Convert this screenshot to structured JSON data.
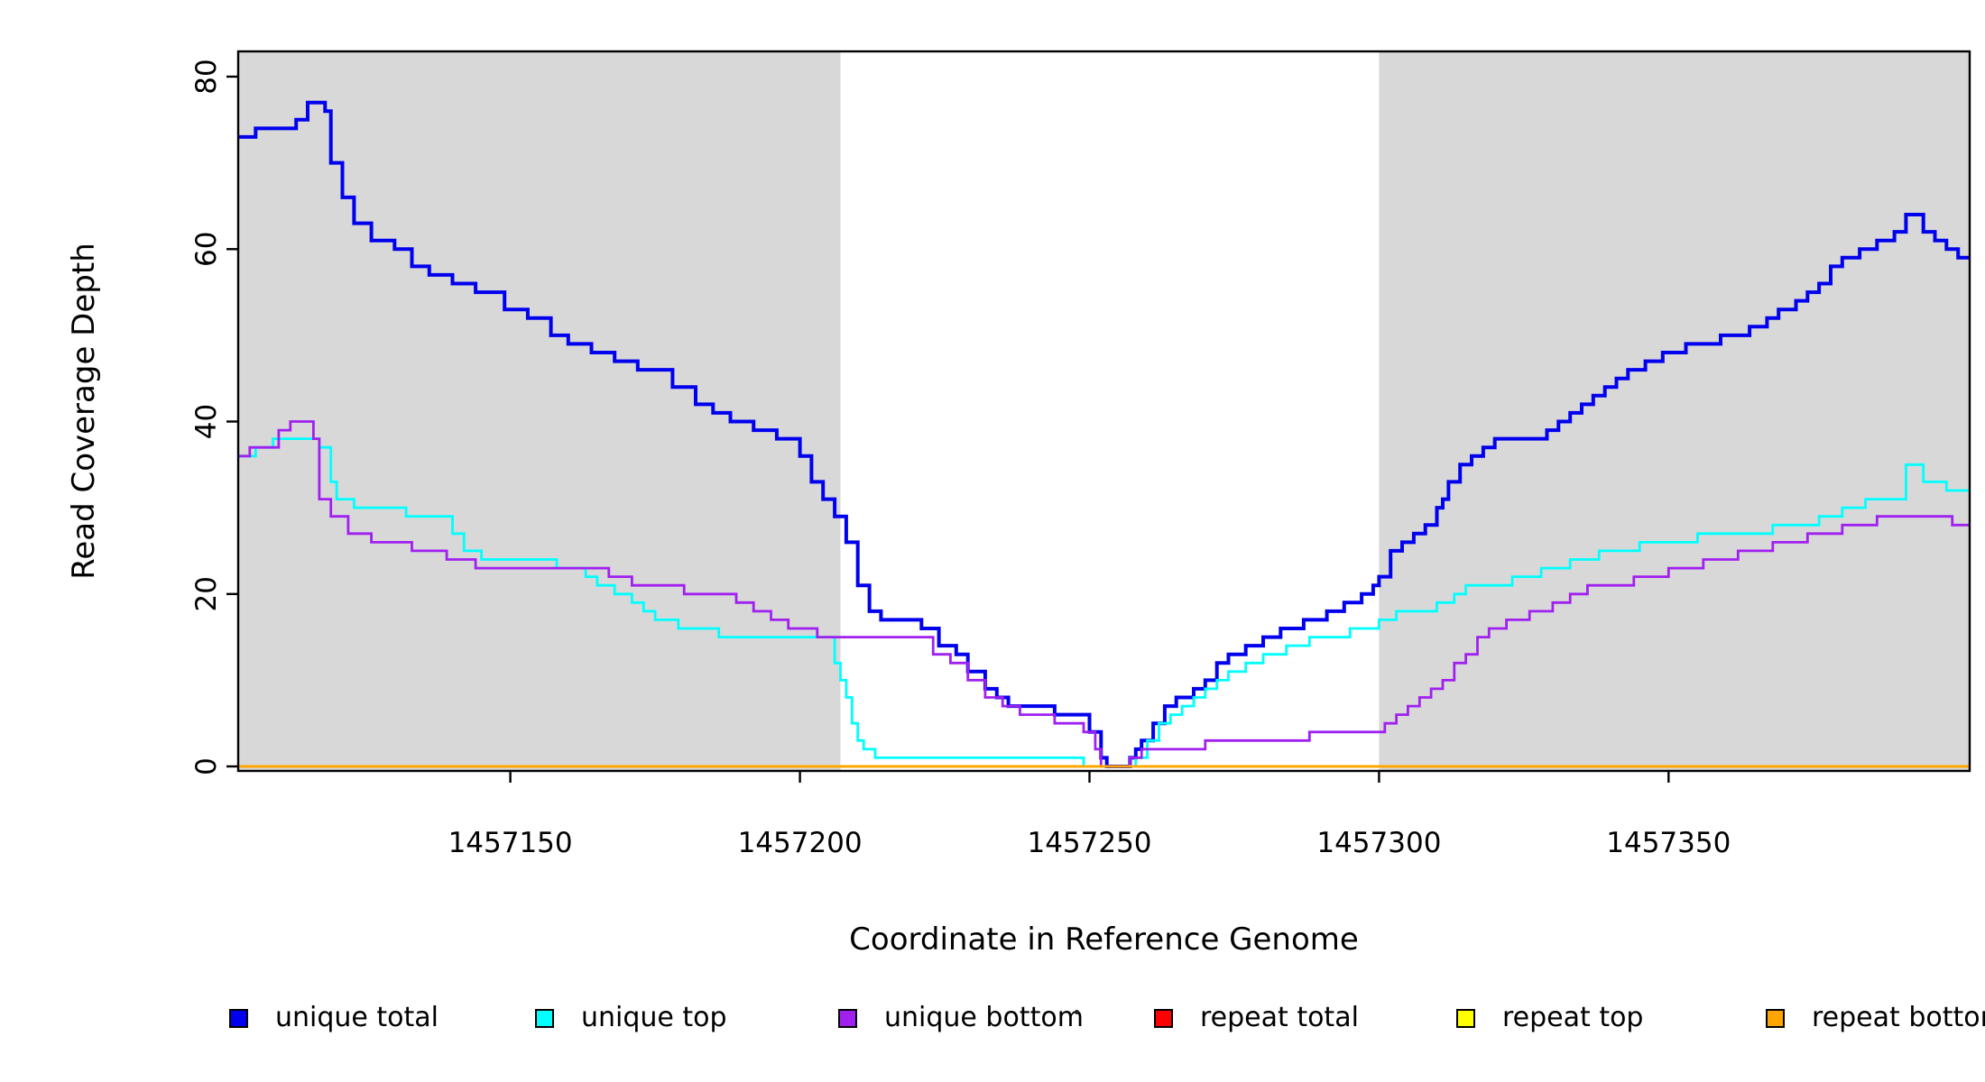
{
  "figure": {
    "background": "#FFFFFF",
    "axis_color": "#000000"
  },
  "chart_data": {
    "type": "line",
    "line_style": "step",
    "title": "",
    "xlabel": "Coordinate in Reference Genome",
    "ylabel": "Read Coverage Depth",
    "xlim": [
      1457103,
      1457402
    ],
    "ylim": [
      0,
      80
    ],
    "x_ticks": [
      1457150,
      1457200,
      1457250,
      1457300,
      1457350
    ],
    "y_ticks": [
      0,
      20,
      40,
      60,
      80
    ],
    "grid": false,
    "legend_position": "bottom-horizontal",
    "shaded_regions": [
      {
        "x0": 1457103,
        "x1": 1457207,
        "color": "#D8D8D8"
      },
      {
        "x0": 1457300,
        "x1": 1457402,
        "color": "#D8D8D8"
      }
    ],
    "series": [
      {
        "id": "unique-total",
        "name": "unique total",
        "color": "#0000EE",
        "points": [
          [
            1457103,
            73
          ],
          [
            1457106,
            74
          ],
          [
            1457113,
            75
          ],
          [
            1457115,
            77
          ],
          [
            1457118,
            76
          ],
          [
            1457119,
            70
          ],
          [
            1457121,
            66
          ],
          [
            1457123,
            63
          ],
          [
            1457126,
            61
          ],
          [
            1457130,
            60
          ],
          [
            1457133,
            58
          ],
          [
            1457136,
            57
          ],
          [
            1457140,
            56
          ],
          [
            1457144,
            55
          ],
          [
            1457149,
            53
          ],
          [
            1457153,
            52
          ],
          [
            1457157,
            50
          ],
          [
            1457160,
            49
          ],
          [
            1457164,
            48
          ],
          [
            1457168,
            47
          ],
          [
            1457172,
            46
          ],
          [
            1457178,
            44
          ],
          [
            1457182,
            42
          ],
          [
            1457185,
            41
          ],
          [
            1457188,
            40
          ],
          [
            1457192,
            39
          ],
          [
            1457196,
            38
          ],
          [
            1457200,
            36
          ],
          [
            1457202,
            33
          ],
          [
            1457204,
            31
          ],
          [
            1457206,
            29
          ],
          [
            1457208,
            26
          ],
          [
            1457210,
            21
          ],
          [
            1457212,
            18
          ],
          [
            1457214,
            17
          ],
          [
            1457221,
            16
          ],
          [
            1457224,
            14
          ],
          [
            1457227,
            13
          ],
          [
            1457229,
            11
          ],
          [
            1457232,
            9
          ],
          [
            1457234,
            8
          ],
          [
            1457236,
            7
          ],
          [
            1457244,
            6
          ],
          [
            1457250,
            4
          ],
          [
            1457252,
            1
          ],
          [
            1457253,
            0
          ],
          [
            1457257,
            1
          ],
          [
            1457258,
            2
          ],
          [
            1457259,
            3
          ],
          [
            1457261,
            5
          ],
          [
            1457263,
            7
          ],
          [
            1457265,
            8
          ],
          [
            1457268,
            9
          ],
          [
            1457270,
            10
          ],
          [
            1457272,
            12
          ],
          [
            1457274,
            13
          ],
          [
            1457277,
            14
          ],
          [
            1457280,
            15
          ],
          [
            1457283,
            16
          ],
          [
            1457287,
            17
          ],
          [
            1457291,
            18
          ],
          [
            1457294,
            19
          ],
          [
            1457297,
            20
          ],
          [
            1457299,
            21
          ],
          [
            1457300,
            22
          ],
          [
            1457302,
            25
          ],
          [
            1457304,
            26
          ],
          [
            1457306,
            27
          ],
          [
            1457308,
            28
          ],
          [
            1457310,
            30
          ],
          [
            1457311,
            31
          ],
          [
            1457312,
            33
          ],
          [
            1457314,
            35
          ],
          [
            1457316,
            36
          ],
          [
            1457318,
            37
          ],
          [
            1457320,
            38
          ],
          [
            1457329,
            39
          ],
          [
            1457331,
            40
          ],
          [
            1457333,
            41
          ],
          [
            1457335,
            42
          ],
          [
            1457337,
            43
          ],
          [
            1457339,
            44
          ],
          [
            1457341,
            45
          ],
          [
            1457343,
            46
          ],
          [
            1457346,
            47
          ],
          [
            1457349,
            48
          ],
          [
            1457353,
            49
          ],
          [
            1457359,
            50
          ],
          [
            1457364,
            51
          ],
          [
            1457367,
            52
          ],
          [
            1457369,
            53
          ],
          [
            1457372,
            54
          ],
          [
            1457374,
            55
          ],
          [
            1457376,
            56
          ],
          [
            1457378,
            58
          ],
          [
            1457380,
            59
          ],
          [
            1457383,
            60
          ],
          [
            1457386,
            61
          ],
          [
            1457389,
            62
          ],
          [
            1457391,
            64
          ],
          [
            1457394,
            62
          ],
          [
            1457396,
            61
          ],
          [
            1457398,
            60
          ],
          [
            1457400,
            59
          ]
        ]
      },
      {
        "id": "unique-top",
        "name": "unique top",
        "color": "#00FFFF",
        "points": [
          [
            1457103,
            36
          ],
          [
            1457106,
            37
          ],
          [
            1457109,
            38
          ],
          [
            1457117,
            37
          ],
          [
            1457119,
            33
          ],
          [
            1457120,
            31
          ],
          [
            1457123,
            30
          ],
          [
            1457132,
            29
          ],
          [
            1457140,
            27
          ],
          [
            1457142,
            25
          ],
          [
            1457145,
            24
          ],
          [
            1457158,
            23
          ],
          [
            1457163,
            22
          ],
          [
            1457165,
            21
          ],
          [
            1457168,
            20
          ],
          [
            1457171,
            19
          ],
          [
            1457173,
            18
          ],
          [
            1457175,
            17
          ],
          [
            1457179,
            16
          ],
          [
            1457186,
            15
          ],
          [
            1457206,
            12
          ],
          [
            1457207,
            10
          ],
          [
            1457208,
            8
          ],
          [
            1457209,
            5
          ],
          [
            1457210,
            3
          ],
          [
            1457211,
            2
          ],
          [
            1457213,
            1
          ],
          [
            1457249,
            0
          ],
          [
            1457258,
            1
          ],
          [
            1457260,
            3
          ],
          [
            1457262,
            5
          ],
          [
            1457264,
            6
          ],
          [
            1457266,
            7
          ],
          [
            1457268,
            8
          ],
          [
            1457270,
            9
          ],
          [
            1457272,
            10
          ],
          [
            1457274,
            11
          ],
          [
            1457277,
            12
          ],
          [
            1457280,
            13
          ],
          [
            1457284,
            14
          ],
          [
            1457288,
            15
          ],
          [
            1457295,
            16
          ],
          [
            1457300,
            17
          ],
          [
            1457303,
            18
          ],
          [
            1457310,
            19
          ],
          [
            1457313,
            20
          ],
          [
            1457315,
            21
          ],
          [
            1457323,
            22
          ],
          [
            1457328,
            23
          ],
          [
            1457333,
            24
          ],
          [
            1457338,
            25
          ],
          [
            1457345,
            26
          ],
          [
            1457355,
            27
          ],
          [
            1457368,
            28
          ],
          [
            1457376,
            29
          ],
          [
            1457380,
            30
          ],
          [
            1457384,
            31
          ],
          [
            1457391,
            35
          ],
          [
            1457394,
            33
          ],
          [
            1457398,
            32
          ]
        ]
      },
      {
        "id": "unique-bottom",
        "name": "unique bottom",
        "color": "#A020F0",
        "points": [
          [
            1457103,
            36
          ],
          [
            1457105,
            37
          ],
          [
            1457110,
            39
          ],
          [
            1457112,
            40
          ],
          [
            1457116,
            38
          ],
          [
            1457117,
            31
          ],
          [
            1457119,
            29
          ],
          [
            1457122,
            27
          ],
          [
            1457126,
            26
          ],
          [
            1457133,
            25
          ],
          [
            1457139,
            24
          ],
          [
            1457144,
            23
          ],
          [
            1457167,
            22
          ],
          [
            1457171,
            21
          ],
          [
            1457180,
            20
          ],
          [
            1457189,
            19
          ],
          [
            1457192,
            18
          ],
          [
            1457195,
            17
          ],
          [
            1457198,
            16
          ],
          [
            1457203,
            15
          ],
          [
            1457223,
            13
          ],
          [
            1457226,
            12
          ],
          [
            1457229,
            10
          ],
          [
            1457232,
            8
          ],
          [
            1457235,
            7
          ],
          [
            1457238,
            6
          ],
          [
            1457244,
            5
          ],
          [
            1457249,
            4
          ],
          [
            1457251,
            2
          ],
          [
            1457252,
            0
          ],
          [
            1457257,
            1
          ],
          [
            1457259,
            2
          ],
          [
            1457270,
            3
          ],
          [
            1457288,
            4
          ],
          [
            1457301,
            5
          ],
          [
            1457303,
            6
          ],
          [
            1457305,
            7
          ],
          [
            1457307,
            8
          ],
          [
            1457309,
            9
          ],
          [
            1457311,
            10
          ],
          [
            1457313,
            12
          ],
          [
            1457315,
            13
          ],
          [
            1457317,
            15
          ],
          [
            1457319,
            16
          ],
          [
            1457322,
            17
          ],
          [
            1457326,
            18
          ],
          [
            1457330,
            19
          ],
          [
            1457333,
            20
          ],
          [
            1457336,
            21
          ],
          [
            1457344,
            22
          ],
          [
            1457350,
            23
          ],
          [
            1457356,
            24
          ],
          [
            1457362,
            25
          ],
          [
            1457368,
            26
          ],
          [
            1457374,
            27
          ],
          [
            1457380,
            28
          ],
          [
            1457386,
            29
          ],
          [
            1457399,
            28
          ]
        ]
      },
      {
        "id": "repeat-total",
        "name": "repeat total",
        "color": "#FF0000",
        "points": [
          [
            1457103,
            0
          ],
          [
            1457402,
            0
          ]
        ]
      },
      {
        "id": "repeat-top",
        "name": "repeat top",
        "color": "#FFFF00",
        "points": [
          [
            1457103,
            0
          ],
          [
            1457402,
            0
          ]
        ]
      },
      {
        "id": "repeat-bottom",
        "name": "repeat bottom",
        "color": "#FFA500",
        "points": [
          [
            1457103,
            0
          ],
          [
            1457402,
            0
          ]
        ]
      }
    ]
  }
}
